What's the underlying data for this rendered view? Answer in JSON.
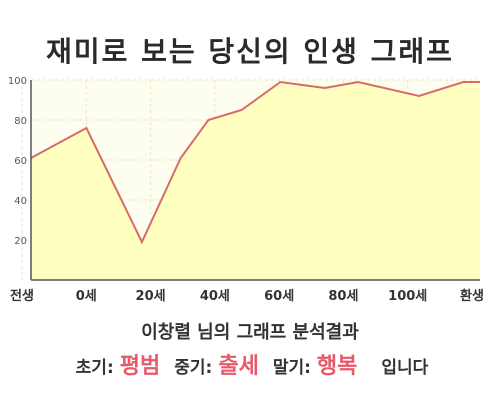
{
  "chart_data": {
    "type": "area",
    "title": "재미로 보는 당신의 인생 그래프",
    "x": [
      0,
      10,
      20,
      27,
      32,
      38,
      45,
      53,
      59,
      70,
      78,
      81
    ],
    "y": [
      61,
      76,
      19,
      61,
      80,
      85,
      99,
      96,
      99,
      92,
      99,
      99
    ],
    "xticks": [
      {
        "value": 0,
        "label": "전생"
      },
      {
        "value": 10,
        "label": "0세"
      },
      {
        "value": 20,
        "label": "20세"
      },
      {
        "value": 30,
        "label": "40세"
      },
      {
        "value": 40,
        "label": "60세"
      },
      {
        "value": 50,
        "label": "80세"
      },
      {
        "value": 60,
        "label": "100세"
      },
      {
        "value": 70,
        "label": "환생"
      }
    ],
    "yticks": [
      20,
      40,
      60,
      80,
      100
    ],
    "ylim": [
      0,
      100
    ],
    "grid": true,
    "colors": {
      "line": "#d96a6a",
      "fill": "#ffffc0",
      "plot_bg": "#fefef0",
      "grid": "#e6e6c8"
    }
  },
  "analysis_text": "이창렬 님의 그래프 분석결과",
  "result": {
    "early_label": "초기:",
    "early_value": "평범",
    "middle_label": "중기:",
    "middle_value": "출세",
    "late_label": "말기:",
    "late_value": "행복",
    "closing": "입니다"
  }
}
